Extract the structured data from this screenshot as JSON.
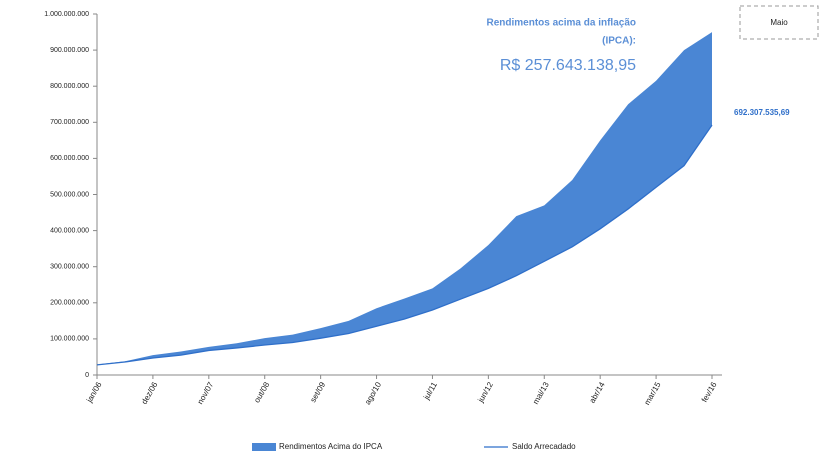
{
  "chart_data": {
    "type": "stacked-area-line",
    "categories": [
      "jan/06",
      null,
      "dez/06",
      null,
      "nov/07",
      null,
      "out/08",
      null,
      "set/09",
      null,
      "ago/10",
      null,
      "jul/11",
      null,
      "jun/12",
      null,
      "mai/13",
      null,
      "abr/14",
      null,
      "mar/15",
      null,
      "fev/16"
    ],
    "series": [
      {
        "name": "Rendimentos Acima do IPCA",
        "color": "#4a86d4",
        "stacked": true,
        "values": [
          1000000,
          2000000,
          8000000,
          10000000,
          10000000,
          13000000,
          19000000,
          22000000,
          28000000,
          35000000,
          50000000,
          57000000,
          60000000,
          85000000,
          120000000,
          165000000,
          155000000,
          185000000,
          245000000,
          290000000,
          295000000,
          320000000,
          257643138.95
        ],
        "value_labels": [
          null,
          null,
          null,
          null,
          null,
          null,
          null,
          null,
          null,
          null,
          null,
          null,
          null,
          null,
          null,
          null,
          null,
          null,
          null,
          null,
          null,
          null,
          "R$ 257.643.138,95"
        ]
      },
      {
        "name": "Saldo Arrecadado",
        "color": "#2f6fc9",
        "values": [
          28000000,
          36000000,
          47000000,
          55000000,
          68000000,
          75000000,
          83000000,
          90000000,
          102000000,
          115000000,
          135000000,
          155000000,
          180000000,
          210000000,
          240000000,
          275000000,
          315000000,
          355000000,
          405000000,
          460000000,
          520000000,
          580000000,
          692307535.69
        ],
        "value_labels": [
          null,
          null,
          null,
          null,
          null,
          null,
          null,
          null,
          null,
          null,
          null,
          null,
          null,
          null,
          null,
          null,
          null,
          null,
          null,
          null,
          null,
          null,
          "692.307.535,69"
        ]
      }
    ],
    "annotation": [
      "Rendimentos   acima da inflação",
      "(IPCA):"
    ],
    "annotation_box": "Maio",
    "ylim": [
      0,
      1000000000
    ],
    "yticks": [
      0,
      {
        "value": 100000000,
        "label": "100.000.000"
      },
      {
        "value": 200000000,
        "label": "200.000.000"
      },
      {
        "value": 300000000,
        "label": "300.000.000"
      },
      {
        "value": 400000000,
        "label": "400.000.000"
      },
      {
        "value": 500000000,
        "label": "500.000.000"
      },
      {
        "value": 600000000,
        "label": "600.000.000"
      },
      {
        "value": 700000000,
        "label": "700.000.000"
      },
      {
        "value": 800000000,
        "label": "800.000.000"
      },
      {
        "value": 900000000,
        "label": "900.000.000"
      },
      {
        "value": 1000000000,
        "label": "1.000.000.000"
      }
    ],
    "grid": false,
    "legend": "bottom"
  }
}
